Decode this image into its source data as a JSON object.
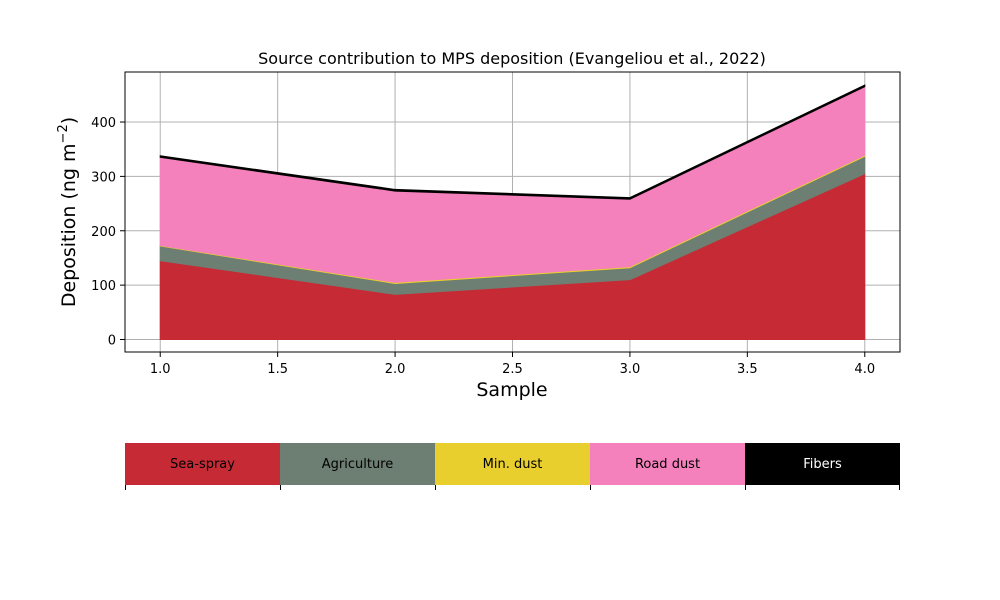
{
  "chart_data": {
    "type": "area",
    "stacked": true,
    "title": "Source contribution to MPS deposition (Evangeliou et al., 2022)",
    "xlabel": "Sample",
    "ylabel": "Deposition (ng m",
    "ylabel_sup": "−2",
    "ylabel_close": ")",
    "x": [
      1.0,
      2.0,
      3.0,
      4.0
    ],
    "xlim": [
      0.85,
      4.15
    ],
    "ylim": [
      -23,
      492
    ],
    "xticks": [
      1.0,
      1.5,
      2.0,
      2.5,
      3.0,
      3.5,
      4.0
    ],
    "xtick_labels": [
      "1.0",
      "1.5",
      "2.0",
      "2.5",
      "3.0",
      "3.5",
      "4.0"
    ],
    "yticks": [
      0,
      100,
      200,
      300,
      400
    ],
    "ytick_labels": [
      "0",
      "100",
      "200",
      "300",
      "400"
    ],
    "grid": true,
    "series": [
      {
        "name": "Sea-spray",
        "color": "#c62a35",
        "values": [
          145,
          83,
          110,
          305
        ]
      },
      {
        "name": "Agriculture",
        "color": "#6d7f72",
        "values": [
          27,
          20,
          22,
          32
        ]
      },
      {
        "name": "Min. dust",
        "color": "#e8cf2e",
        "values": [
          1,
          2,
          2,
          2
        ]
      },
      {
        "name": "Road dust",
        "color": "#f480bc",
        "values": [
          162,
          168,
          124,
          126
        ]
      },
      {
        "name": "Fibers",
        "color": "#000000",
        "values": [
          3,
          3,
          3,
          3
        ]
      }
    ]
  },
  "legend": {
    "items": [
      {
        "label": "Sea-spray",
        "color": "#c62a35",
        "text_color": "#000000"
      },
      {
        "label": "Agriculture",
        "color": "#6d7f72",
        "text_color": "#000000"
      },
      {
        "label": "Min. dust",
        "color": "#e8cf2e",
        "text_color": "#000000"
      },
      {
        "label": "Road dust",
        "color": "#f480bc",
        "text_color": "#000000"
      },
      {
        "label": "Fibers",
        "color": "#000000",
        "text_color": "#ffffff"
      }
    ]
  }
}
